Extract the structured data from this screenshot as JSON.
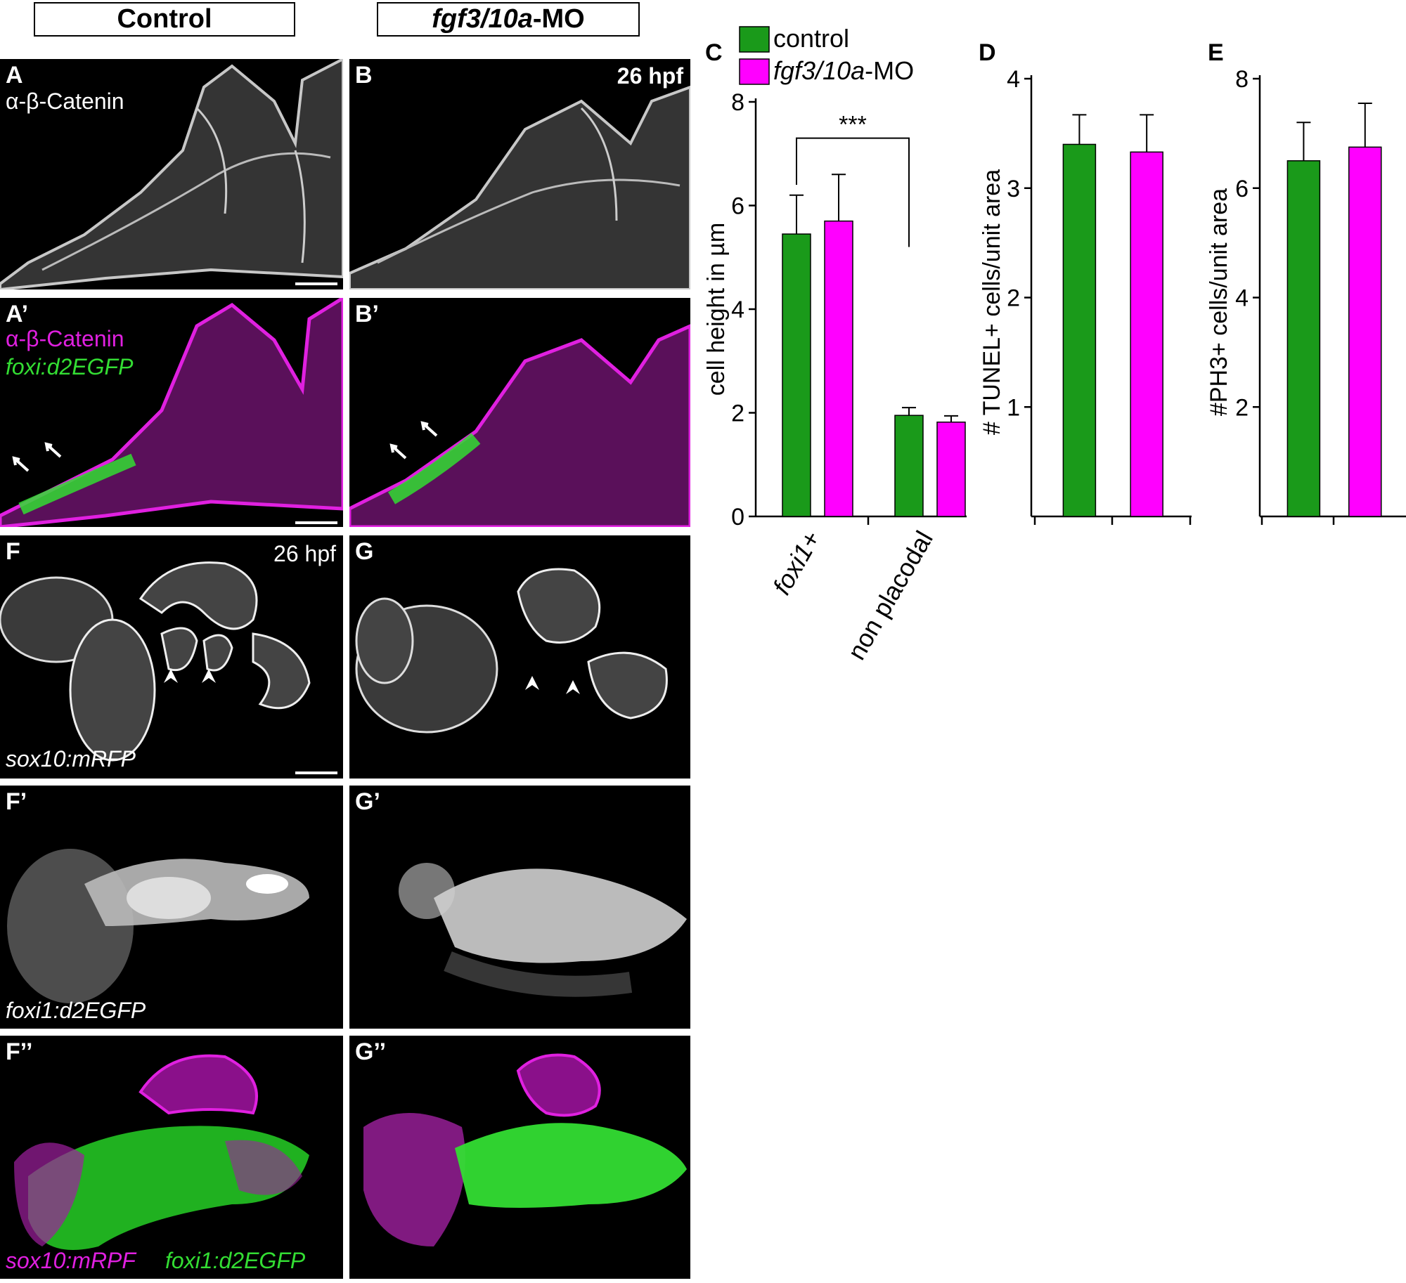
{
  "headers": {
    "control": "Control",
    "mo_italic": "fgf3/10a",
    "mo_suffix": "-MO"
  },
  "panels": {
    "A": {
      "label": "A",
      "stain": "α-β-Catenin"
    },
    "B": {
      "label": "B",
      "time": "26 hpf"
    },
    "A2": {
      "label": "A’",
      "stain": "α-β-Catenin",
      "reporter": "foxi:d2EGFP"
    },
    "B2": {
      "label": "B’"
    },
    "F": {
      "label": "F",
      "time": "26 hpf",
      "reporter": "sox10:mRFP"
    },
    "G": {
      "label": "G"
    },
    "F2": {
      "label": "F’",
      "reporter": "foxi1:d2EGFP"
    },
    "G2": {
      "label": "G’"
    },
    "F3": {
      "label": "F’’",
      "reporter_magenta": "sox10:mRPF",
      "reporter_green": "foxi1:d2EGFP"
    },
    "G3": {
      "label": "G’’"
    }
  },
  "colors": {
    "control": "#1a9a1a",
    "morphant": "#ff00ff",
    "magenta_stain": "#e020e0",
    "green_stain": "#33dd33"
  },
  "legend": {
    "control": "control",
    "mo_italic": "fgf3/10a",
    "mo_suffix": "-MO"
  },
  "chart_data": [
    {
      "panel": "C",
      "type": "bar",
      "ylabel": "cell height in µm",
      "categories": [
        "foxi1+",
        "non placodal"
      ],
      "ylim": [
        0,
        8
      ],
      "yticks": [
        0,
        2,
        4,
        6,
        8
      ],
      "series": [
        {
          "name": "control",
          "values": [
            5.45,
            1.95
          ],
          "errors": [
            0.75,
            0.15
          ]
        },
        {
          "name": "fgf3/10a-MO",
          "values": [
            5.7,
            1.82
          ],
          "errors": [
            0.9,
            0.12
          ]
        }
      ],
      "annotation": "***"
    },
    {
      "panel": "D",
      "type": "bar",
      "ylabel": "# TUNEL+ cells/unit area",
      "categories": [
        "control",
        "fgf3/10a-MO"
      ],
      "ylim": [
        0,
        4
      ],
      "yticks": [
        1,
        2,
        3,
        4
      ],
      "values": [
        3.4,
        3.33
      ],
      "errors": [
        0.27,
        0.34
      ]
    },
    {
      "panel": "E",
      "type": "bar",
      "ylabel": "#PH3+ cells/unit area",
      "categories": [
        "control",
        "fgf3/10a-MO"
      ],
      "ylim": [
        0,
        8
      ],
      "yticks": [
        2,
        4,
        6,
        8
      ],
      "values": [
        6.5,
        6.75
      ],
      "errors": [
        0.7,
        0.8
      ]
    }
  ]
}
